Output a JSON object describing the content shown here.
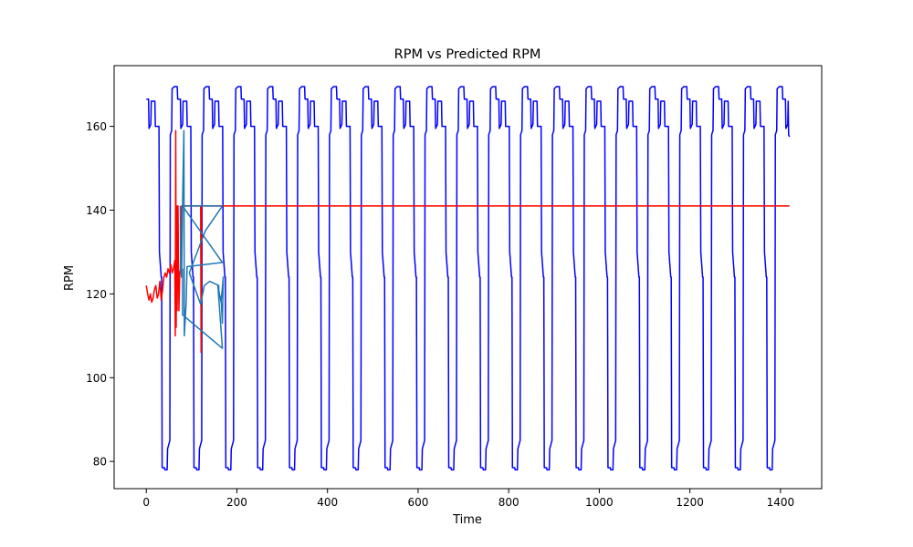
{
  "chart_data": {
    "type": "line",
    "title": "RPM vs Predicted RPM",
    "xlabel": "Time",
    "ylabel": "RPM",
    "xlim": [
      -71,
      1491
    ],
    "ylim": [
      73.5,
      174.5
    ],
    "x_ticks": [
      0,
      200,
      400,
      600,
      800,
      1000,
      1200,
      1400
    ],
    "y_ticks": [
      80,
      100,
      120,
      140,
      160
    ],
    "x_tick_labels": [
      "0",
      "200",
      "400",
      "600",
      "800",
      "1000",
      "1200",
      "1400"
    ],
    "y_tick_labels": [
      "80",
      "100",
      "120",
      "140",
      "160"
    ],
    "grid": false,
    "legend": "none",
    "series": [
      {
        "color": "#0000ff",
        "style": "periodic-rpm",
        "x_range": [
          0,
          1420
        ],
        "period": 70.3,
        "levels": [
          166.5,
          159.5,
          160.5,
          166.0,
          130.0,
          124.0,
          78.5,
          78.0,
          83.0,
          85.0,
          158.0,
          169.0
        ],
        "points": [
          [
            0,
            166.5
          ],
          [
            5,
            166.5
          ],
          [
            6,
            159.5
          ],
          [
            10,
            160.5
          ],
          [
            11,
            166
          ],
          [
            19,
            166
          ],
          [
            20,
            160
          ],
          [
            28,
            160
          ],
          [
            29,
            130
          ],
          [
            33,
            124
          ],
          [
            34,
            124
          ],
          [
            35,
            78.5
          ],
          [
            40,
            78.5
          ],
          [
            41,
            78
          ],
          [
            46,
            78
          ],
          [
            47,
            83
          ],
          [
            52,
            85
          ],
          [
            53,
            158
          ],
          [
            56,
            159
          ],
          [
            57,
            169
          ],
          [
            62,
            169.5
          ]
        ]
      },
      {
        "color": "#ff0000",
        "style": "predicted-red",
        "points": [
          [
            0,
            122
          ],
          [
            3,
            120
          ],
          [
            6,
            118.5
          ],
          [
            9,
            120
          ],
          [
            12,
            118
          ],
          [
            15,
            119
          ],
          [
            18,
            121
          ],
          [
            21,
            122
          ],
          [
            24,
            119
          ],
          [
            27,
            120
          ],
          [
            30,
            123
          ],
          [
            33,
            118.5
          ],
          [
            36,
            121
          ],
          [
            39,
            124
          ],
          [
            42,
            125
          ],
          [
            45,
            124
          ],
          [
            48,
            126
          ],
          [
            51,
            125
          ],
          [
            54,
            127
          ],
          [
            57,
            125
          ],
          [
            60,
            126
          ],
          [
            63,
            128
          ],
          [
            64,
            110
          ],
          [
            65,
            159
          ],
          [
            66,
            112
          ],
          [
            67,
            141
          ],
          [
            68,
            116
          ],
          [
            69,
            125
          ],
          [
            70,
            141
          ],
          [
            72,
            116
          ],
          [
            74,
            125
          ],
          [
            76,
            126
          ],
          [
            78,
            141
          ],
          [
            120,
            141
          ],
          [
            121,
            106
          ],
          [
            122,
            141
          ],
          [
            1420,
            141
          ]
        ]
      },
      {
        "color": "#1f77b4",
        "style": "predicted-tab-blue",
        "points": [
          [
            75,
            141
          ],
          [
            76,
            126
          ],
          [
            78,
            124
          ],
          [
            80,
            141
          ],
          [
            83,
            159
          ],
          [
            84,
            110
          ],
          [
            88,
            118
          ],
          [
            90,
            126.5
          ],
          [
            168,
            127.5
          ],
          [
            80,
            141
          ],
          [
            168,
            141
          ],
          [
            130,
            135
          ],
          [
            95,
            125
          ],
          [
            120,
            117.5
          ],
          [
            128,
            122
          ],
          [
            140,
            123
          ],
          [
            150,
            122.5
          ],
          [
            160,
            122
          ],
          [
            160,
            120
          ],
          [
            165,
            119
          ],
          [
            168,
            113
          ],
          [
            170,
            124
          ],
          [
            165,
            118
          ],
          [
            158,
            122
          ],
          [
            168,
            107
          ],
          [
            80,
            115
          ],
          [
            80,
            126
          ]
        ]
      }
    ]
  }
}
